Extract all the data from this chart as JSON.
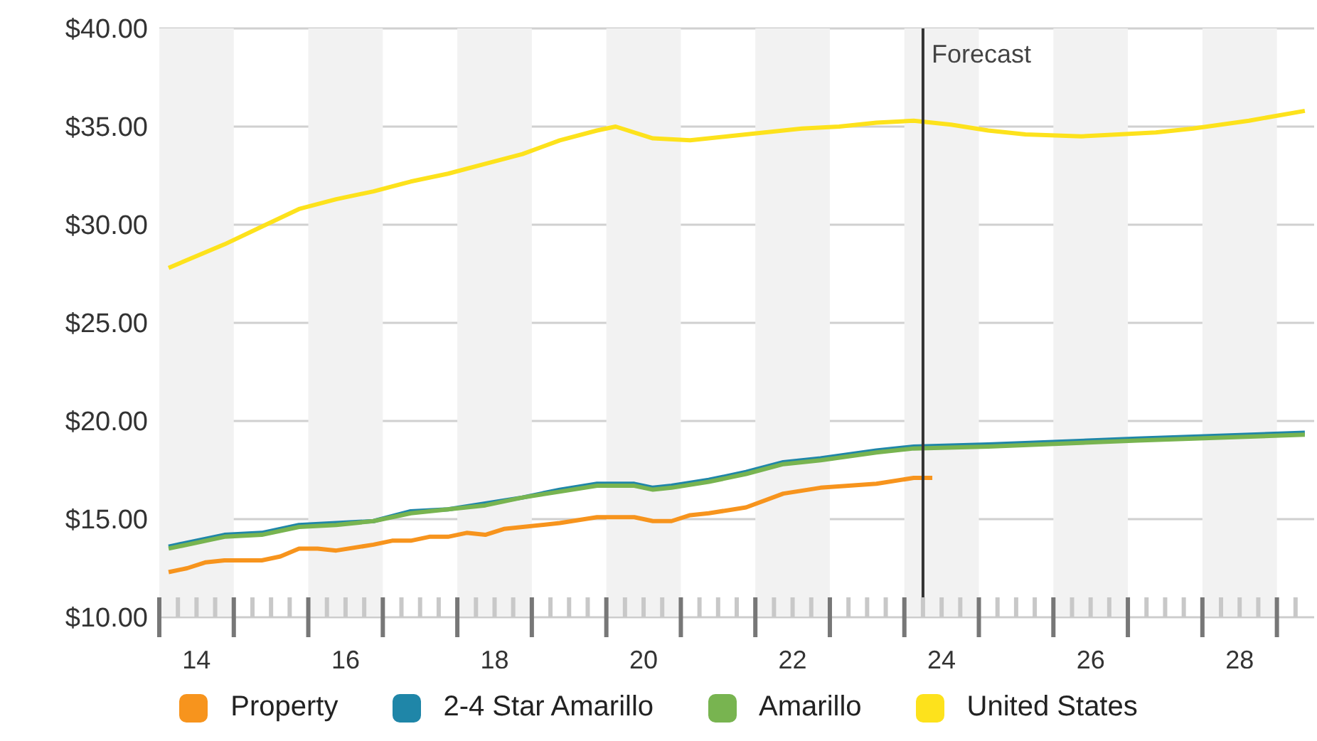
{
  "chart_data": {
    "type": "line",
    "xlim": [
      13.5,
      29
    ],
    "xticks": [
      14,
      16,
      18,
      20,
      22,
      24,
      26,
      28
    ],
    "ylim": [
      10,
      40
    ],
    "yticks": [
      {
        "value": 10,
        "label": "$10.00"
      },
      {
        "value": 15,
        "label": "$15.00"
      },
      {
        "value": 20,
        "label": "$20.00"
      },
      {
        "value": 25,
        "label": "$25.00"
      },
      {
        "value": 30,
        "label": "$30.00"
      },
      {
        "value": 35,
        "label": "$35.00"
      },
      {
        "value": 40,
        "label": "$40.00"
      }
    ],
    "grid": "y",
    "legend": "bottom",
    "marker": "none",
    "line_style": "solid",
    "ref_lines": [
      {
        "axis": "x",
        "value": 23.75,
        "label": "Forecast",
        "color": "#333333"
      }
    ],
    "bands": [
      {
        "axis": "x",
        "from": 13.5,
        "to": 14.5,
        "color": "#f2f2f2"
      },
      {
        "axis": "x",
        "from": 15.5,
        "to": 16.5,
        "color": "#f2f2f2"
      },
      {
        "axis": "x",
        "from": 17.5,
        "to": 18.5,
        "color": "#f2f2f2"
      },
      {
        "axis": "x",
        "from": 19.5,
        "to": 20.5,
        "color": "#f2f2f2"
      },
      {
        "axis": "x",
        "from": 21.5,
        "to": 22.5,
        "color": "#f2f2f2"
      },
      {
        "axis": "x",
        "from": 23.5,
        "to": 24.5,
        "color": "#f2f2f2"
      },
      {
        "axis": "x",
        "from": 25.5,
        "to": 26.5,
        "color": "#f2f2f2"
      },
      {
        "axis": "x",
        "from": 27.5,
        "to": 28.5,
        "color": "#f2f2f2"
      }
    ],
    "series": [
      {
        "name": "Property",
        "color": "#f7941d",
        "x": [
          13.625,
          13.875,
          14.125,
          14.375,
          14.875,
          15.125,
          15.375,
          15.625,
          15.875,
          16.375,
          16.625,
          16.875,
          17.125,
          17.375,
          17.625,
          17.875,
          18.125,
          18.875,
          19.375,
          19.875,
          20.125,
          20.375,
          20.625,
          20.875,
          21.375,
          21.875,
          22.375,
          23.125,
          23.625,
          23.875
        ],
        "values": [
          12.3,
          12.5,
          12.8,
          12.9,
          12.9,
          13.1,
          13.5,
          13.5,
          13.4,
          13.7,
          13.9,
          13.9,
          14.1,
          14.1,
          14.3,
          14.2,
          14.5,
          14.8,
          15.1,
          15.1,
          14.9,
          14.9,
          15.2,
          15.3,
          15.6,
          16.3,
          16.6,
          16.8,
          17.1,
          17.1
        ]
      },
      {
        "name": "2-4 Star Amarillo",
        "color": "#1f86a8",
        "x": [
          13.625,
          14.375,
          14.875,
          15.375,
          15.875,
          16.375,
          16.875,
          17.375,
          17.875,
          18.375,
          18.875,
          19.375,
          19.875,
          20.125,
          20.375,
          20.875,
          21.375,
          21.875,
          22.375,
          23.125,
          23.625,
          24.625,
          26.625,
          28.875
        ],
        "values": [
          13.6,
          14.2,
          14.3,
          14.7,
          14.8,
          14.9,
          15.4,
          15.5,
          15.8,
          16.1,
          16.5,
          16.8,
          16.8,
          16.6,
          16.7,
          17.0,
          17.4,
          17.9,
          18.1,
          18.5,
          18.7,
          18.8,
          19.1,
          19.4
        ]
      },
      {
        "name": "Amarillo",
        "color": "#78b450",
        "x": [
          13.625,
          14.375,
          14.875,
          15.375,
          15.875,
          16.375,
          16.875,
          17.375,
          17.875,
          18.375,
          18.875,
          19.375,
          19.875,
          20.125,
          20.375,
          20.875,
          21.375,
          21.875,
          22.375,
          23.125,
          23.625,
          24.625,
          26.625,
          28.875
        ],
        "values": [
          13.5,
          14.1,
          14.2,
          14.6,
          14.7,
          14.9,
          15.3,
          15.5,
          15.7,
          16.1,
          16.4,
          16.7,
          16.7,
          16.5,
          16.6,
          16.9,
          17.3,
          17.8,
          18.0,
          18.4,
          18.6,
          18.7,
          19.0,
          19.3
        ]
      },
      {
        "name": "United States",
        "color": "#fde21c",
        "x": [
          13.625,
          14.375,
          14.875,
          15.375,
          15.875,
          16.375,
          16.875,
          17.375,
          17.875,
          18.375,
          18.875,
          19.375,
          19.625,
          20.125,
          20.625,
          21.125,
          21.625,
          22.125,
          22.625,
          23.125,
          23.625,
          24.125,
          24.625,
          25.125,
          25.875,
          26.375,
          26.875,
          27.375,
          28.125,
          28.875
        ],
        "values": [
          27.8,
          29.0,
          29.9,
          30.8,
          31.3,
          31.7,
          32.2,
          32.6,
          33.1,
          33.6,
          34.3,
          34.8,
          35.0,
          34.4,
          34.3,
          34.5,
          34.7,
          34.9,
          35.0,
          35.2,
          35.3,
          35.1,
          34.8,
          34.6,
          34.5,
          34.6,
          34.7,
          34.9,
          35.3,
          35.8
        ]
      }
    ]
  }
}
